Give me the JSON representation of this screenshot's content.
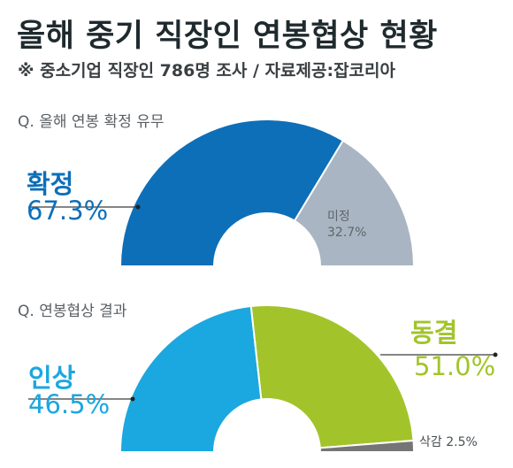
{
  "title": "올해 중기 직장인 연봉협상 현황",
  "subtitle": "※ 중소기업 직장인 786명 조사 / 자료제공:잡코리아",
  "colors": {
    "confirmed": "#0d6fb8",
    "undecided": "#a9b5c2",
    "raise": "#1ba7df",
    "freeze": "#a2c42a",
    "cut": "#757575",
    "text_dark": "#1f2a2e"
  },
  "chart_data": [
    {
      "type": "pie",
      "question": "Q. 올해 연봉 확정 유무",
      "slices": [
        {
          "label": "확정",
          "value": 67.3,
          "value_text": "67.3%",
          "color": "#0d6fb8"
        },
        {
          "label": "미정",
          "value": 32.7,
          "value_text": "32.7%",
          "color": "#a9b5c2"
        }
      ]
    },
    {
      "type": "pie",
      "question": "Q. 연봉협상 결과",
      "slices": [
        {
          "label": "인상",
          "value": 46.5,
          "value_text": "46.5%",
          "color": "#1ba7df"
        },
        {
          "label": "동결",
          "value": 51.0,
          "value_text": "51.0%",
          "color": "#a2c42a"
        },
        {
          "label": "삭감",
          "value": 2.5,
          "value_text": "2.5%",
          "color": "#757575"
        }
      ]
    }
  ]
}
